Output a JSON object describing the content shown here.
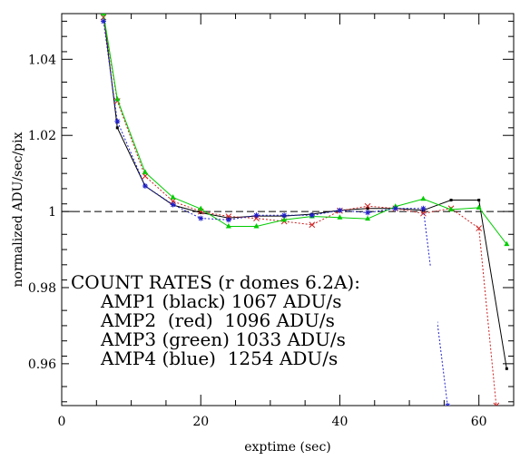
{
  "chart_data": {
    "type": "line",
    "title": "",
    "xlabel": "exptime (sec)",
    "ylabel": "normalized ADU/sec/pix",
    "xlim": [
      0,
      65
    ],
    "ylim": [
      0.949,
      1.052
    ],
    "xticks": [
      0,
      20,
      40,
      60
    ],
    "xtick_labels": [
      "0",
      "20",
      "40",
      "60"
    ],
    "yticks": [
      0.96,
      0.98,
      1.0,
      1.02,
      1.04
    ],
    "ytick_labels": [
      "0.96",
      "0.98",
      "1",
      "1.02",
      "1.04"
    ],
    "reference_line": {
      "y": 1.0,
      "style": "dashed",
      "color": "#000000"
    },
    "annotation": {
      "lines": [
        "COUNT RATES (r domes 6.2A):",
        "AMP1 (black) 1067 ADU/s",
        "AMP2  (red)  1096 ADU/s",
        "AMP3 (green) 1033 ADU/s",
        "AMP4 (blue)  1254 ADU/s"
      ]
    },
    "series": [
      {
        "color": "#000000",
        "dash": "solid",
        "marker": "dot",
        "x": [
          6,
          8,
          12,
          16,
          20,
          24,
          28,
          32,
          36,
          40,
          44,
          48,
          52,
          56,
          60,
          64
        ],
        "y": [
          1.052,
          1.022,
          1.0067,
          1.0017,
          0.9997,
          0.9983,
          0.9988,
          0.9988,
          0.9993,
          1.0003,
          1.0008,
          1.0008,
          1.0003,
          1.003,
          1.003,
          0.9587
        ]
      },
      {
        "color": "#cc2020",
        "dash": "dotted",
        "marker": "x",
        "x": [
          6,
          8,
          12,
          16,
          20,
          24,
          28,
          32,
          36,
          40,
          44,
          48,
          52,
          56,
          60,
          62.5
        ],
        "y": [
          1.051,
          1.029,
          1.0093,
          1.0027,
          1.0,
          0.9987,
          0.9982,
          0.9974,
          0.9965,
          1.0002,
          1.0014,
          1.0008,
          0.9995,
          1.0008,
          0.9956,
          0.949
        ]
      },
      {
        "color": "#00cc00",
        "dash": "solid",
        "marker": "triangle",
        "x": [
          6,
          8,
          12,
          16,
          20,
          24,
          28,
          32,
          36,
          40,
          44,
          48,
          52,
          56,
          60,
          64
        ],
        "y": [
          1.052,
          1.0295,
          1.0103,
          1.0037,
          1.0007,
          0.9961,
          0.9961,
          0.9978,
          0.9987,
          0.9984,
          0.9981,
          1.0013,
          1.0033,
          1.0005,
          1.001,
          0.9914
        ]
      },
      {
        "color": "#2020cc",
        "dash": "dotted",
        "marker": "star",
        "x": [
          6,
          8,
          12,
          16,
          20,
          24,
          28,
          32,
          36,
          40,
          44,
          48,
          52,
          55.5
        ],
        "y": [
          1.05,
          1.0237,
          1.0067,
          1.0018,
          0.9982,
          0.9978,
          0.999,
          0.999,
          0.999,
          1.0003,
          0.9997,
          1.0008,
          1.0008,
          0.949
        ]
      }
    ]
  }
}
